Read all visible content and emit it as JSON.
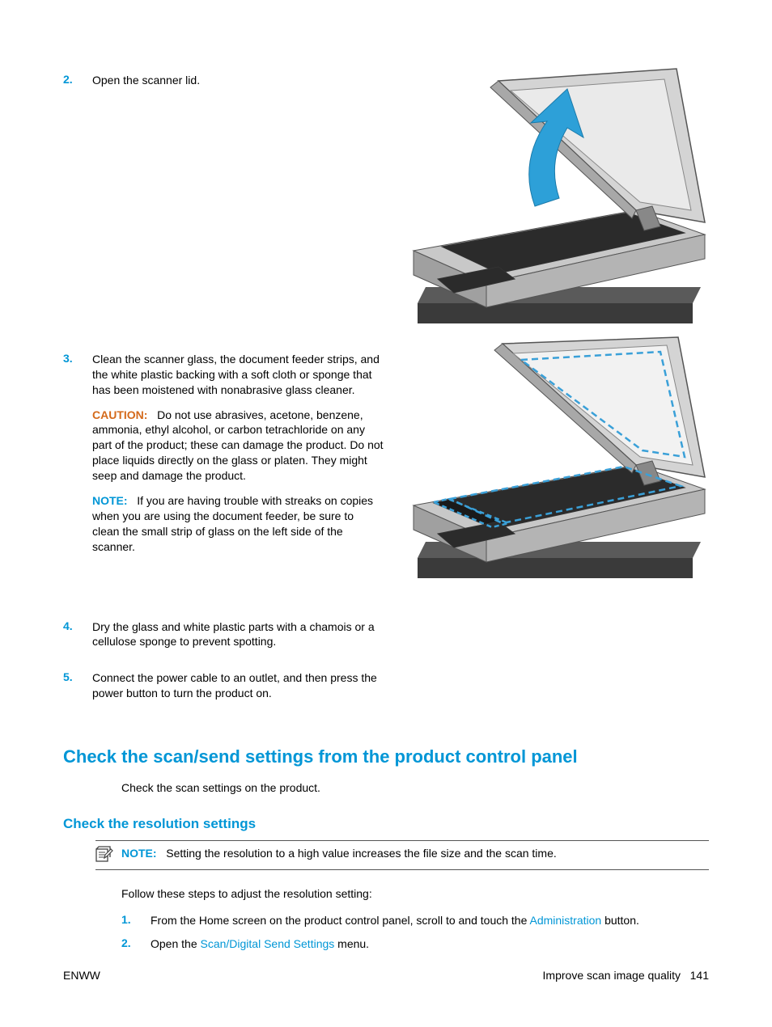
{
  "steps_main": [
    {
      "num": "2.",
      "paras": [
        {
          "text": "Open the scanner lid."
        }
      ]
    },
    {
      "num": "3.",
      "paras": [
        {
          "text": "Clean the scanner glass, the document feeder strips, and the white plastic backing with a soft cloth or sponge that has been moistened with nonabrasive glass cleaner."
        },
        {
          "label": "CAUTION:",
          "label_class": "caution",
          "text": "Do not use abrasives, acetone, benzene, ammonia, ethyl alcohol, or carbon tetrachloride on any part of the product; these can damage the product. Do not place liquids directly on the glass or platen. They might seep and damage the product."
        },
        {
          "label": "NOTE:",
          "label_class": "note-blue",
          "text": "If you are having trouble with streaks on copies when you are using the document feeder, be sure to clean the small strip of glass on the left side of the scanner."
        }
      ]
    },
    {
      "num": "4.",
      "paras": [
        {
          "text": "Dry the glass and white plastic parts with a chamois or a cellulose sponge to prevent spotting."
        }
      ]
    },
    {
      "num": "5.",
      "paras": [
        {
          "text": "Connect the power cable to an outlet, and then press the power button to turn the product on."
        }
      ]
    }
  ],
  "heading1": "Check the scan/send settings from the product control panel",
  "heading1_sub": "Check the scan settings on the product.",
  "heading2": "Check the resolution settings",
  "note_box": {
    "label": "NOTE:",
    "text": "Setting the resolution to a high value increases the file size and the scan time."
  },
  "follow_text": "Follow these steps to adjust the resolution setting:",
  "steps_sub": [
    {
      "num": "1.",
      "pre": "From the Home screen on the product control panel, scroll to and touch the ",
      "link": "Administration",
      "post": " button."
    },
    {
      "num": "2.",
      "pre": "Open the ",
      "link": "Scan/Digital Send Settings",
      "post": " menu."
    }
  ],
  "footer": {
    "left": "ENWW",
    "right_text": "Improve scan image quality",
    "page": "141"
  },
  "colors": {
    "accent": "#0096d6",
    "caution": "#d4691a",
    "gray_light": "#d4d4d4",
    "gray_mid": "#a8a8a8",
    "gray_dark": "#4a4a4a",
    "dash": "#3aa0d8"
  }
}
